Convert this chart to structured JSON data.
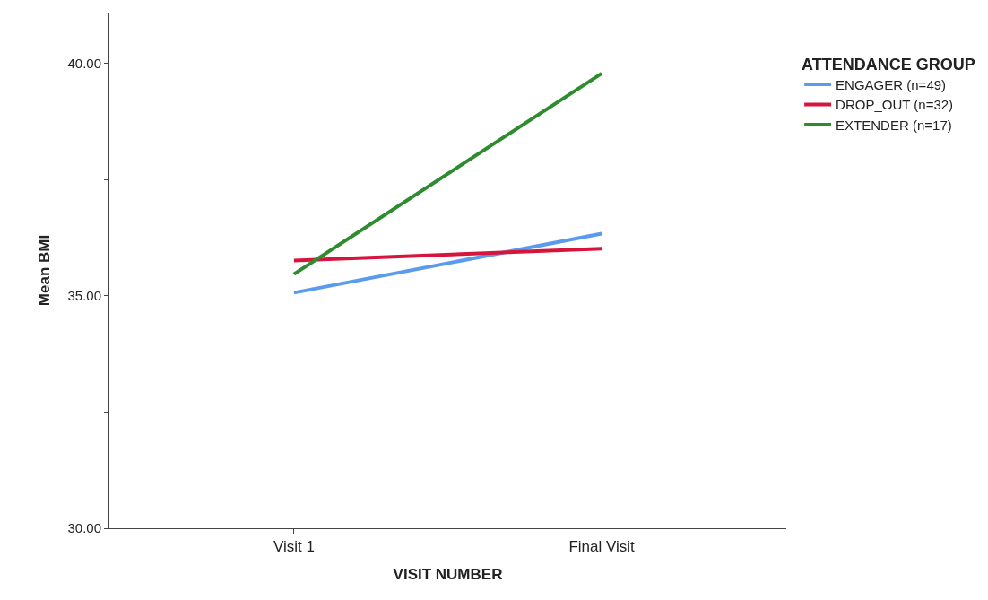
{
  "chart_data": {
    "type": "line",
    "xlabel": "VISIT NUMBER",
    "ylabel": "Mean BMI",
    "legend_title": "ATTENDANCE GROUP",
    "categories": [
      "Visit 1",
      "Final Visit"
    ],
    "series": [
      {
        "name": "ENGAGER (n=49)",
        "color": "#5b9bed",
        "values": [
          35.07,
          36.34
        ]
      },
      {
        "name": "DROP_OUT (n=32)",
        "color": "#d7143c",
        "values": [
          35.76,
          36.02
        ]
      },
      {
        "name": "EXTENDER (n=17)",
        "color": "#2e8b2e",
        "values": [
          35.47,
          39.79
        ]
      }
    ],
    "ylim": [
      30,
      41.1
    ],
    "yticks": [
      {
        "value": 30,
        "label": "30.00"
      },
      {
        "value": 32.5,
        "label": null
      },
      {
        "value": 35,
        "label": "35.00"
      },
      {
        "value": 37.5,
        "label": null
      },
      {
        "value": 40,
        "label": "40.00"
      }
    ],
    "legend": "top right",
    "marker": "none",
    "line_style": "solid"
  }
}
